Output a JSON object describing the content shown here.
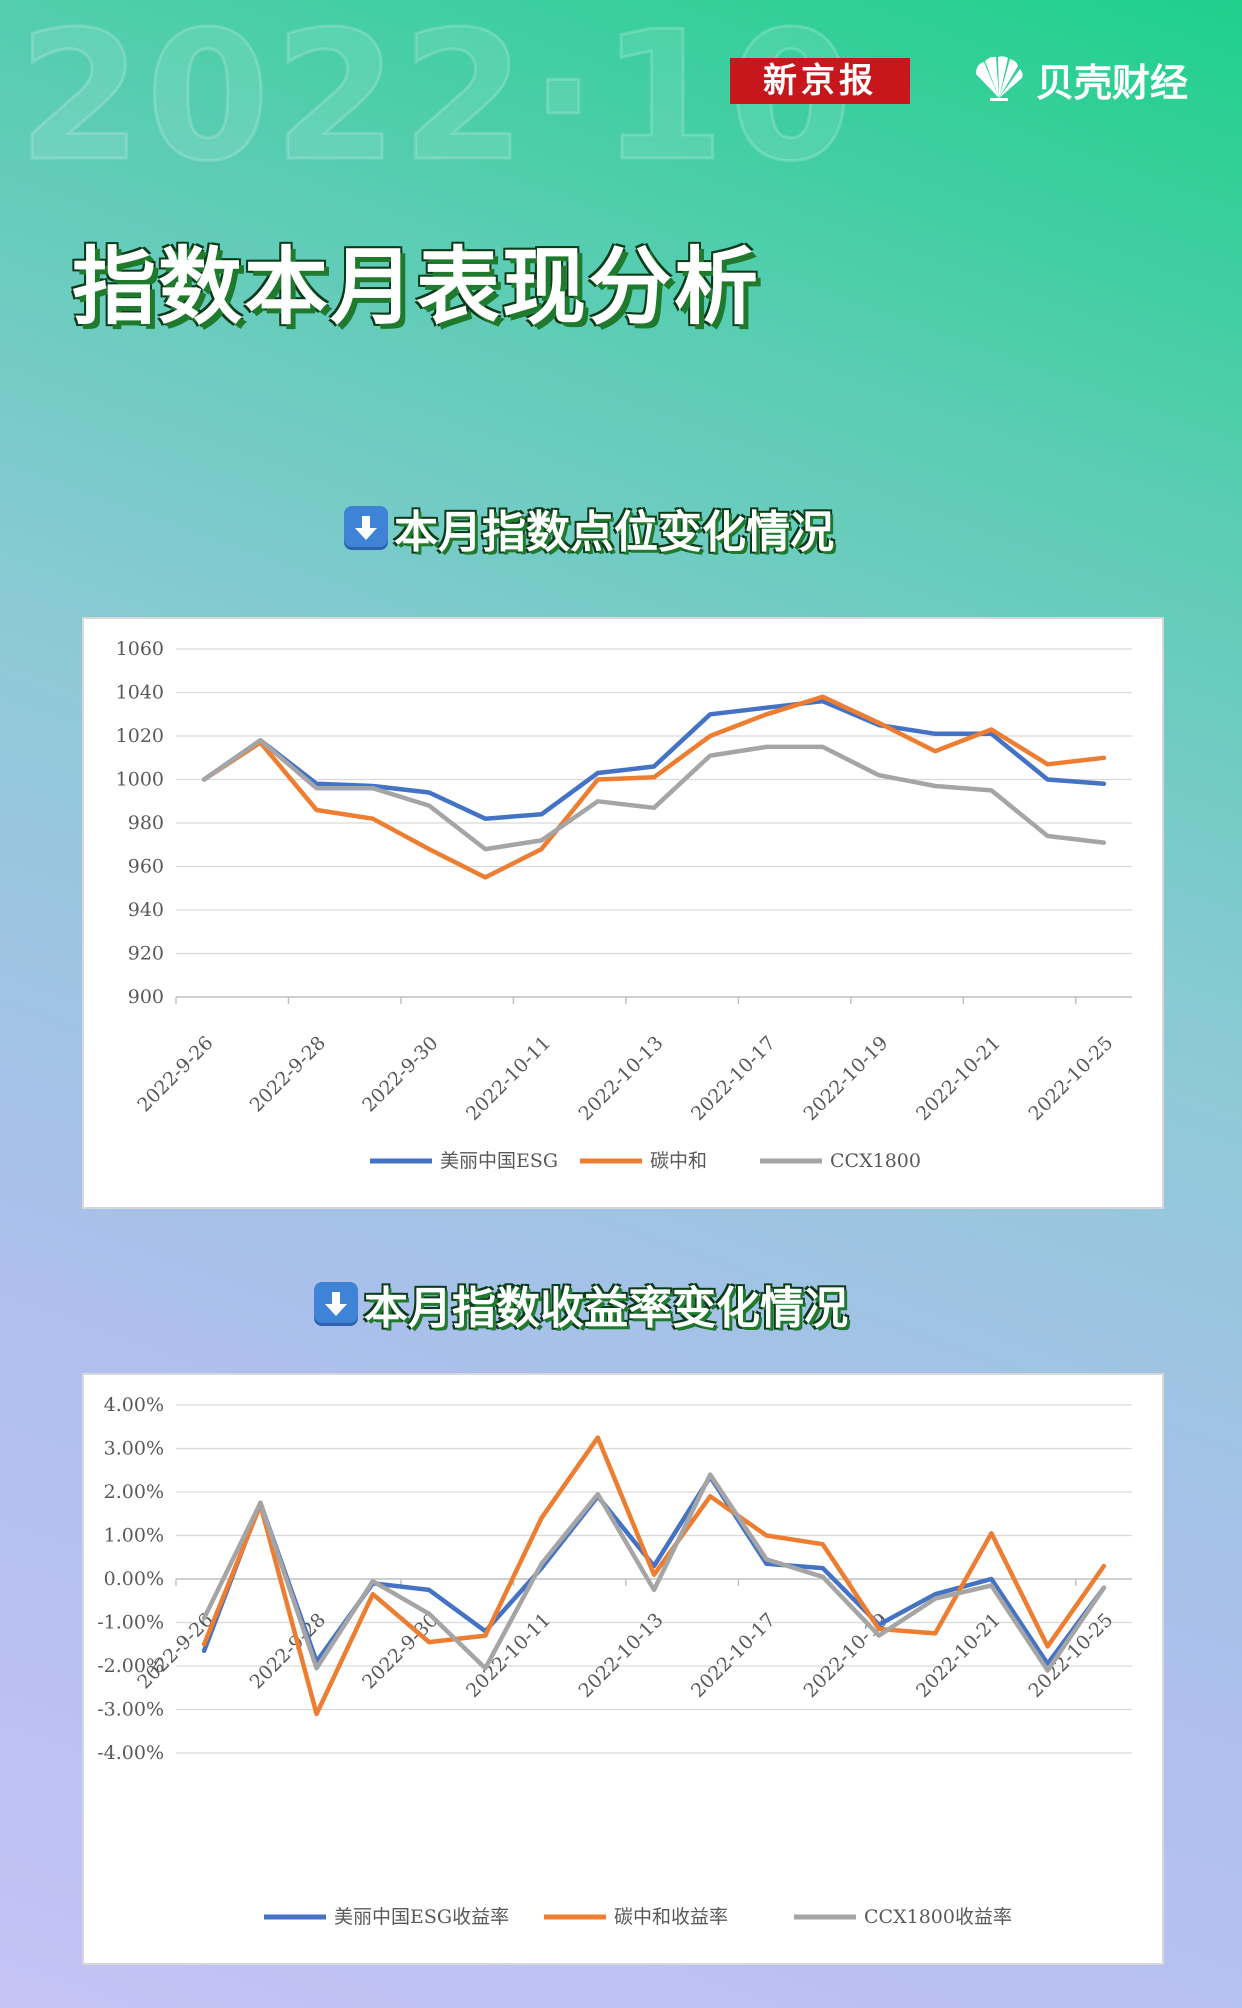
{
  "watermark": "2022·10",
  "brand": {
    "xinjingbao": "新京报",
    "beike": "贝壳财经"
  },
  "title": "指数本月表现分析",
  "colors": {
    "esg": "#4472c4",
    "carbon": "#ed7d31",
    "ccx": "#a5a5a5",
    "grid": "#d9d9d9",
    "axis_text": "#595959"
  },
  "chart_data": [
    {
      "type": "line",
      "section_title": "本月指数点位变化情况",
      "ylim": [
        900,
        1060
      ],
      "yticks": [
        "1060",
        "1040",
        "1020",
        "1000",
        "980",
        "960",
        "940",
        "920",
        "900"
      ],
      "ytick_values": [
        1060,
        1040,
        1020,
        1000,
        980,
        960,
        940,
        920,
        900
      ],
      "xtick_labels": [
        "2022-9-26",
        "2022-9-28",
        "2022-9-30",
        "2022-10-11",
        "2022-10-13",
        "2022-10-17",
        "2022-10-19",
        "2022-10-21",
        "2022-10-25"
      ],
      "grid": true,
      "legend_position": "bottom",
      "series": [
        {
          "name": "美丽中国ESG",
          "color": "#4472c4",
          "values": [
            1000,
            1018,
            998,
            997,
            994,
            982,
            984,
            1003,
            1006,
            1030,
            1033,
            1036,
            1025,
            1021,
            1021,
            1000,
            998
          ]
        },
        {
          "name": "碳中和",
          "color": "#ed7d31",
          "values": [
            1000,
            1017,
            986,
            982,
            968,
            955,
            968,
            1000,
            1001,
            1020,
            1030,
            1038,
            1026,
            1013,
            1023,
            1007,
            1010
          ]
        },
        {
          "name": "CCX1800",
          "color": "#a5a5a5",
          "values": [
            1000,
            1018,
            996,
            996,
            988,
            968,
            972,
            990,
            987,
            1011,
            1015,
            1015,
            1002,
            997,
            995,
            974,
            971
          ]
        }
      ]
    },
    {
      "type": "line",
      "section_title": "本月指数收益率变化情况",
      "ylim": [
        -4,
        4
      ],
      "yticks": [
        "4.00%",
        "3.00%",
        "2.00%",
        "1.00%",
        "0.00%",
        "-1.00%",
        "-2.00%",
        "-3.00%",
        "-4.00%"
      ],
      "ytick_values": [
        4,
        3,
        2,
        1,
        0,
        -1,
        -2,
        -3,
        -4
      ],
      "xtick_labels": [
        "2022-9-26",
        "2022-9-28",
        "2022-9-30",
        "2022-10-11",
        "2022-10-13",
        "2022-10-17",
        "2022-10-19",
        "2022-10-21",
        "2022-10-25"
      ],
      "grid": true,
      "legend_position": "bottom",
      "series": [
        {
          "name": "美丽中国ESG收益率",
          "color": "#4472c4",
          "values": [
            -1.65,
            1.75,
            -1.9,
            -0.1,
            -0.25,
            -1.2,
            0.25,
            1.9,
            0.3,
            2.35,
            0.35,
            0.25,
            -1.05,
            -0.35,
            0.0,
            -1.95,
            -0.2
          ]
        },
        {
          "name": "碳中和收益率",
          "color": "#ed7d31",
          "values": [
            -1.5,
            1.7,
            -3.1,
            -0.35,
            -1.45,
            -1.3,
            1.4,
            3.25,
            0.1,
            1.9,
            1.0,
            0.8,
            -1.15,
            -1.25,
            1.05,
            -1.55,
            0.3
          ]
        },
        {
          "name": "CCX1800收益率",
          "color": "#a5a5a5",
          "values": [
            -0.9,
            1.75,
            -2.05,
            -0.05,
            -0.8,
            -2.05,
            0.35,
            1.95,
            -0.25,
            2.4,
            0.45,
            0.05,
            -1.3,
            -0.45,
            -0.15,
            -2.1,
            -0.2
          ]
        }
      ]
    }
  ]
}
